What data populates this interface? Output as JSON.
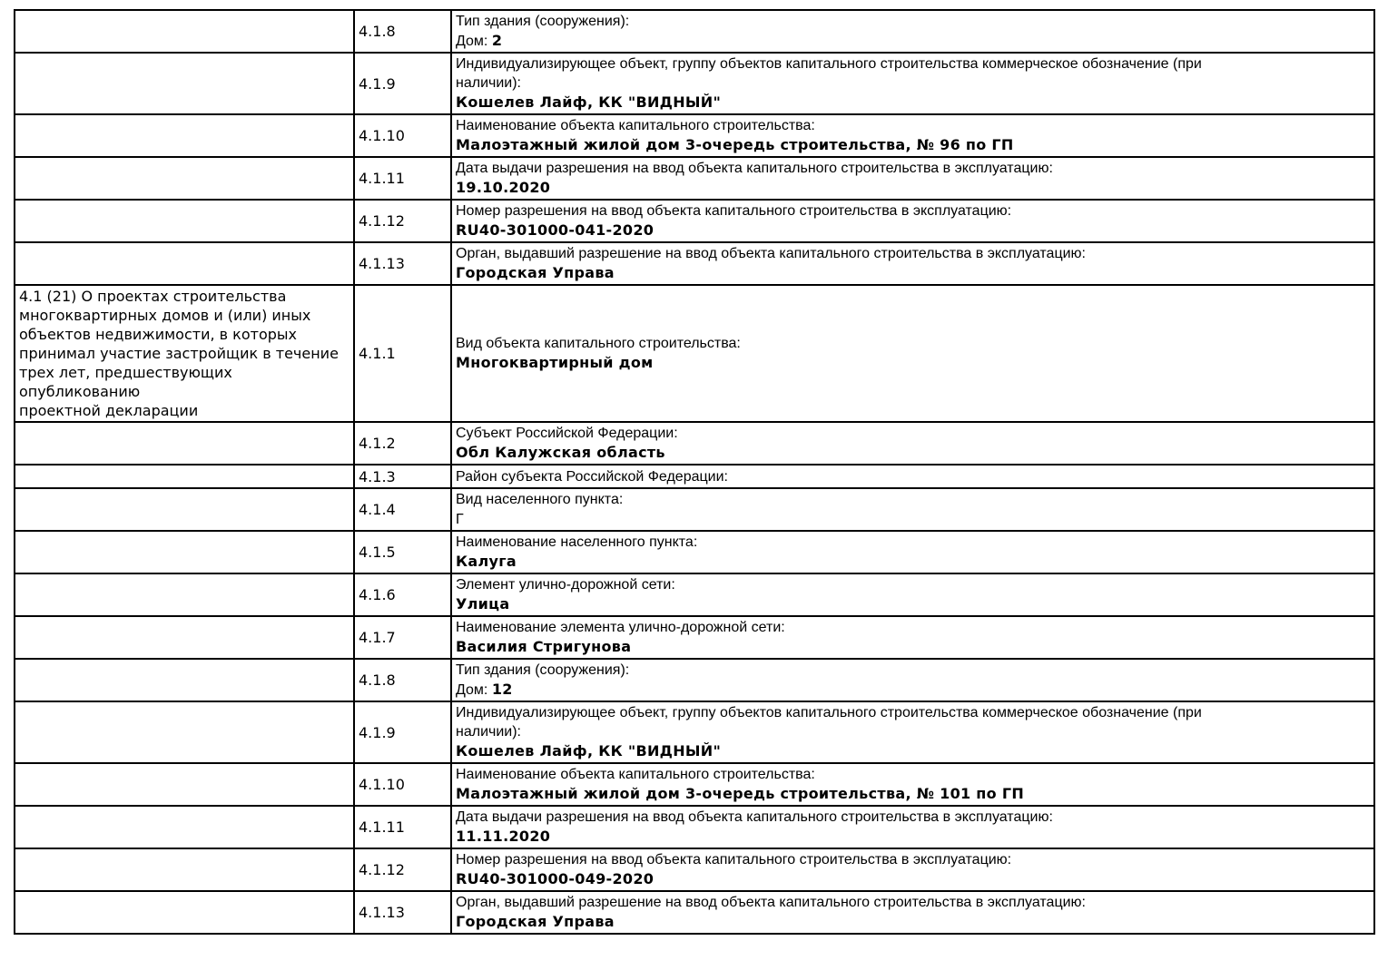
{
  "page": {
    "background_color": "#ffffff",
    "border_color": "#000000",
    "text_color": "#000000"
  },
  "table": {
    "section_note": [
      "4.1 (21) О проектах строительства",
      "многоквартирных домов и (или) иных",
      "объектов недвижимости, в которых",
      "принимал участие застройщик в течение",
      "трех лет, предшествующих опубликованию",
      "проектной декларации"
    ],
    "rows": [
      {
        "code": "4.1.8",
        "label": "Тип здания (сооружения):",
        "prefix": "Дом: ",
        "value": "2"
      },
      {
        "code": "4.1.9",
        "label": [
          "Индивидуализирующее объект, группу объектов капитального строительства коммерческое обозначение (при",
          "наличии):"
        ],
        "value": "Кошелев Лайф, КК \"ВИДНЫЙ\""
      },
      {
        "code": "4.1.10",
        "label": "Наименование объекта капитального строительства:",
        "value": "Малоэтажный жилой дом 3-очередь строительства, № 96 по ГП"
      },
      {
        "code": "4.1.11",
        "label": "Дата выдачи разрешения на ввод объекта капитального строительства в эксплуатацию:",
        "value": "19.10.2020"
      },
      {
        "code": "4.1.12",
        "label": "Номер разрешения на ввод объекта капитального строительства в эксплуатацию:",
        "value": "RU40-301000-041-2020"
      },
      {
        "code": "4.1.13",
        "label": "Орган, выдавший разрешение на ввод объекта капитального строительства в эксплуатацию:",
        "value": "Городская Управа"
      },
      {
        "code": "4.1.1",
        "section": true,
        "label": "Вид объекта капитального строительства:",
        "value": "Многоквартирный дом"
      },
      {
        "code": "4.1.2",
        "label": "Субъект Российской Федерации:",
        "value": "Обл Калужская область"
      },
      {
        "code": "4.1.3",
        "label": "Район субъекта Российской Федерации:",
        "value": ""
      },
      {
        "code": "4.1.4",
        "label": "Вид населенного пункта:",
        "prefix": "Г",
        "value": ""
      },
      {
        "code": "4.1.5",
        "label": "Наименование населенного пункта:",
        "value": "Калуга"
      },
      {
        "code": "4.1.6",
        "label": "Элемент улично-дорожной сети:",
        "value": "Улица"
      },
      {
        "code": "4.1.7",
        "label": "Наименование элемента улично-дорожной сети:",
        "value": "Василия Стригунова"
      },
      {
        "code": "4.1.8",
        "label": "Тип здания (сооружения):",
        "prefix": "Дом: ",
        "value": "12"
      },
      {
        "code": "4.1.9",
        "label": [
          "Индивидуализирующее объект, группу объектов капитального строительства коммерческое обозначение (при",
          "наличии):"
        ],
        "value": "Кошелев Лайф, КК \"ВИДНЫЙ\""
      },
      {
        "code": "4.1.10",
        "label": "Наименование объекта капитального строительства:",
        "value": "Малоэтажный жилой дом 3-очередь строительства, № 101 по ГП"
      },
      {
        "code": "4.1.11",
        "label": "Дата выдачи разрешения на ввод объекта капитального строительства в эксплуатацию:",
        "value": "11.11.2020"
      },
      {
        "code": "4.1.12",
        "label": "Номер разрешения на ввод объекта капитального строительства в эксплуатацию:",
        "value": "RU40-301000-049-2020"
      },
      {
        "code": "4.1.13",
        "label": "Орган, выдавший разрешение на ввод объекта капитального строительства в эксплуатацию:",
        "value": "Городская Управа"
      }
    ]
  }
}
